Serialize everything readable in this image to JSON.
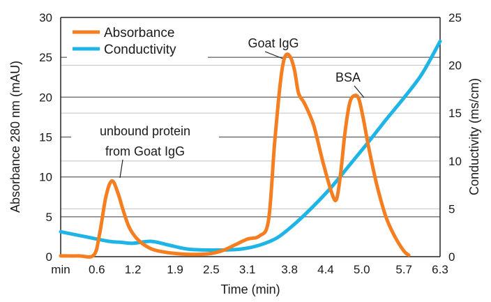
{
  "chart_data": {
    "type": "line",
    "xlabel": "Time (min)",
    "ylabel_left": "Absorbance 280 nm (mAU)",
    "ylabel_right": "Conductivity (ms/cm)",
    "x_origin_label": "min",
    "x_ticks": [
      "0.6",
      "1.2",
      "1.9",
      "2.5",
      "3.1",
      "3.8",
      "4.4",
      "5.0",
      "5.7",
      "6.3"
    ],
    "xlim": [
      0,
      6.3
    ],
    "ylim_left": [
      0,
      30
    ],
    "ylim_right": [
      0,
      25
    ],
    "y_ticks_left": [
      0,
      5,
      10,
      15,
      20,
      25,
      30
    ],
    "y_ticks_right": [
      0,
      5,
      10,
      15,
      20,
      25
    ],
    "grid": true,
    "legend_position": "top-left",
    "series": [
      {
        "name": "Absorbance",
        "axis": "left",
        "color": "#f57f20",
        "x": [
          0.0,
          0.3,
          0.55,
          0.65,
          0.75,
          0.85,
          0.95,
          1.05,
          1.15,
          1.3,
          1.5,
          1.7,
          1.9,
          2.1,
          2.3,
          2.5,
          2.7,
          2.9,
          3.1,
          3.3,
          3.45,
          3.55,
          3.65,
          3.72,
          3.8,
          3.88,
          3.95,
          4.05,
          4.2,
          4.35,
          4.5,
          4.58,
          4.65,
          4.72,
          4.8,
          4.88,
          4.95,
          5.02,
          5.12,
          5.25,
          5.4,
          5.55,
          5.7,
          5.78
        ],
        "y": [
          0.1,
          0.1,
          0.2,
          3.0,
          7.5,
          9.5,
          8.0,
          5.5,
          3.5,
          2.0,
          1.0,
          0.6,
          0.4,
          0.3,
          0.3,
          0.4,
          0.8,
          1.5,
          2.2,
          2.6,
          4.5,
          14.0,
          22.0,
          25.0,
          25.2,
          23.5,
          20.5,
          19.2,
          16.5,
          12.0,
          8.0,
          7.2,
          10.5,
          15.5,
          19.3,
          20.2,
          19.8,
          17.5,
          13.5,
          9.0,
          5.0,
          2.5,
          0.7,
          0.2
        ]
      },
      {
        "name": "Conductivity",
        "axis": "right",
        "color": "#1eb4e6",
        "x": [
          0.0,
          0.4,
          0.8,
          1.0,
          1.2,
          1.5,
          1.8,
          2.1,
          2.4,
          2.7,
          3.0,
          3.3,
          3.6,
          3.9,
          4.2,
          4.5,
          4.8,
          5.1,
          5.4,
          5.7,
          6.0,
          6.3
        ],
        "y": [
          2.6,
          2.1,
          1.6,
          1.5,
          1.4,
          1.6,
          1.2,
          0.8,
          0.7,
          0.7,
          0.8,
          1.2,
          2.0,
          3.5,
          5.3,
          7.3,
          9.6,
          11.9,
          14.3,
          16.6,
          19.1,
          22.5
        ]
      }
    ],
    "annotations": [
      {
        "text": "Goat IgG",
        "x": 3.8,
        "y": 25.2
      },
      {
        "text": "BSA",
        "x": 4.95,
        "y": 20.2
      },
      {
        "text": "unbound protein",
        "x": 0.9,
        "y": 9.5
      },
      {
        "text": "from Goat IgG",
        "x": 0.9,
        "y": 9.5
      }
    ]
  }
}
